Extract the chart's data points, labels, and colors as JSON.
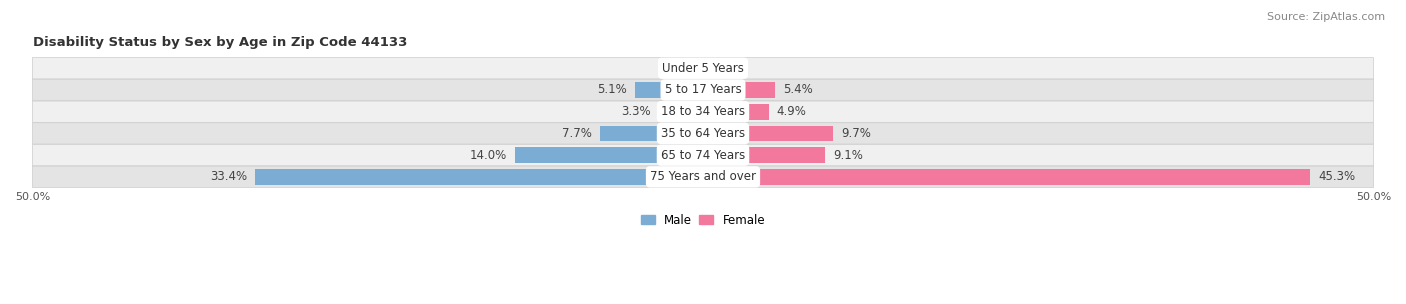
{
  "title": "Disability Status by Sex by Age in Zip Code 44133",
  "source": "Source: ZipAtlas.com",
  "categories": [
    "Under 5 Years",
    "5 to 17 Years",
    "18 to 34 Years",
    "35 to 64 Years",
    "65 to 74 Years",
    "75 Years and over"
  ],
  "male_values": [
    0.0,
    5.1,
    3.3,
    7.7,
    14.0,
    33.4
  ],
  "female_values": [
    0.0,
    5.4,
    4.9,
    9.7,
    9.1,
    45.3
  ],
  "male_color": "#7badd4",
  "female_color": "#f2789e",
  "row_bg_color_odd": "#f0f0f0",
  "row_bg_color_even": "#e4e4e4",
  "row_border_color": "#cccccc",
  "axis_limit": 50.0,
  "male_label": "Male",
  "female_label": "Female",
  "bar_height": 0.72,
  "value_fontsize": 8.5,
  "cat_fontsize": 8.5,
  "title_fontsize": 9.5,
  "source_fontsize": 8.0
}
